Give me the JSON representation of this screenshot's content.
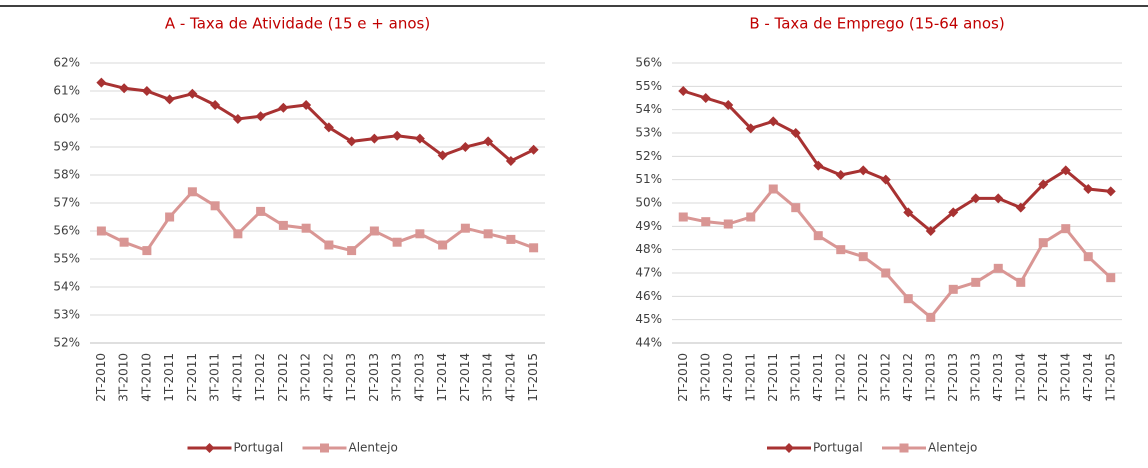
{
  "chart_data": [
    {
      "type": "line",
      "title": "A - Taxa de Atividade (15 e + anos)",
      "categories": [
        "2T-2010",
        "3T-2010",
        "4T-2010",
        "1T-2011",
        "2T-2011",
        "3T-2011",
        "4T-2011",
        "1T-2012",
        "2T-2012",
        "3T-2012",
        "4T-2012",
        "1T-2013",
        "2T-2013",
        "3T-2013",
        "4T-2013",
        "1T-2014",
        "2T-2014",
        "3T-2014",
        "4T-2014",
        "1T-2015"
      ],
      "series": [
        {
          "name": "Portugal",
          "color": "#a83232",
          "marker": "diamond",
          "values": [
            61.3,
            61.1,
            61.0,
            60.7,
            60.9,
            60.5,
            60.0,
            60.1,
            60.4,
            60.5,
            59.7,
            59.2,
            59.3,
            59.4,
            59.3,
            58.7,
            59.0,
            59.2,
            58.5,
            58.9
          ]
        },
        {
          "name": "Alentejo",
          "color": "#d99694",
          "marker": "square",
          "values": [
            56.0,
            55.6,
            55.3,
            56.5,
            57.4,
            56.9,
            55.9,
            56.7,
            56.2,
            56.1,
            55.5,
            55.3,
            56.0,
            55.6,
            55.9,
            55.5,
            56.1,
            55.9,
            55.7,
            55.4
          ]
        }
      ],
      "ylim": [
        52,
        62
      ],
      "yticks": [
        {
          "value": 52,
          "label": "52%"
        },
        {
          "value": 53,
          "label": "53%"
        },
        {
          "value": 54,
          "label": "54%"
        },
        {
          "value": 55,
          "label": "55%"
        },
        {
          "value": 56,
          "label": "56%"
        },
        {
          "value": 57,
          "label": "57%"
        },
        {
          "value": 58,
          "label": "58%"
        },
        {
          "value": 59,
          "label": "59%"
        },
        {
          "value": 60,
          "label": "60%"
        },
        {
          "value": 61,
          "label": "61%"
        },
        {
          "value": 62,
          "label": "62%"
        }
      ],
      "grid": true,
      "legend": "bottom"
    },
    {
      "type": "line",
      "title": "B - Taxa de Emprego (15-64 anos)",
      "categories": [
        "2T-2010",
        "3T-2010",
        "4T-2010",
        "1T-2011",
        "2T-2011",
        "3T-2011",
        "4T-2011",
        "1T-2012",
        "2T-2012",
        "3T-2012",
        "4T-2012",
        "1T-2013",
        "2T-2013",
        "3T-2013",
        "4T-2013",
        "1T-2014",
        "2T-2014",
        "3T-2014",
        "4T-2014",
        "1T-2015"
      ],
      "series": [
        {
          "name": "Portugal",
          "color": "#a83232",
          "marker": "diamond",
          "values": [
            54.8,
            54.5,
            54.2,
            53.2,
            53.5,
            53.0,
            51.6,
            51.2,
            51.4,
            51.0,
            49.6,
            48.8,
            49.6,
            50.2,
            50.2,
            49.8,
            50.8,
            51.4,
            50.6,
            50.5
          ]
        },
        {
          "name": "Alentejo",
          "color": "#d99694",
          "marker": "square",
          "values": [
            49.4,
            49.2,
            49.1,
            49.4,
            50.6,
            49.8,
            48.6,
            48.0,
            47.7,
            47.0,
            45.9,
            45.1,
            46.3,
            46.6,
            47.2,
            46.6,
            48.3,
            48.9,
            47.7,
            46.8
          ]
        }
      ],
      "ylim": [
        44,
        56
      ],
      "yticks": [
        {
          "value": 44,
          "label": "44%"
        },
        {
          "value": 45,
          "label": "45%"
        },
        {
          "value": 46,
          "label": "46%"
        },
        {
          "value": 47,
          "label": "47%"
        },
        {
          "value": 48,
          "label": "48%"
        },
        {
          "value": 49,
          "label": "49%"
        },
        {
          "value": 50,
          "label": "50%"
        },
        {
          "value": 51,
          "label": "51%"
        },
        {
          "value": 52,
          "label": "52%"
        },
        {
          "value": 53,
          "label": "53%"
        },
        {
          "value": 54,
          "label": "54%"
        },
        {
          "value": 55,
          "label": "55%"
        },
        {
          "value": 56,
          "label": "56%"
        }
      ],
      "grid": true,
      "legend": "bottom"
    }
  ]
}
